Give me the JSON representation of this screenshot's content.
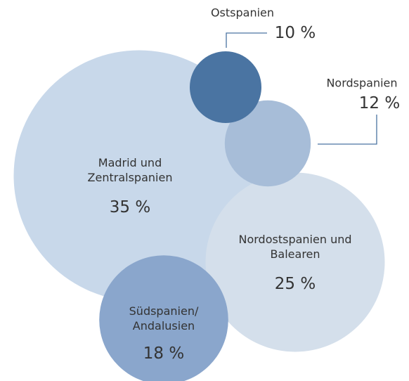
{
  "chart_data": {
    "type": "bubble",
    "categories": [
      "Madrid und\nZentralspanien",
      "Nordostspanien und\nBalearen",
      "Südspanien/\nAndalusien",
      "Nordspanien",
      "Ostspanien"
    ],
    "values": [
      35,
      25,
      18,
      12,
      10
    ],
    "value_labels": [
      "35 %",
      "25 %",
      "18 %",
      "12 %",
      "10 %"
    ],
    "colors": [
      "#c8d8ea",
      "#d4dfeb",
      "#8aa6cc",
      "#a7bdd8",
      "#4a74a2"
    ]
  }
}
